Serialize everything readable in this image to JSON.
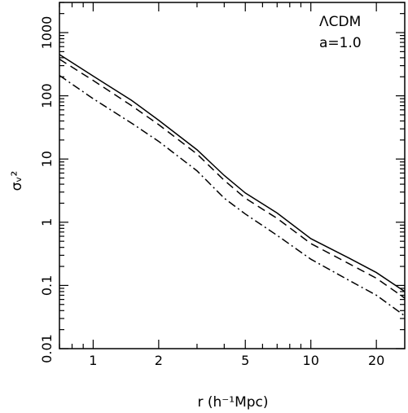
{
  "chart_data": {
    "type": "line",
    "xlabel": "r (h⁻¹Mpc)",
    "ylabel": "σᵥ²",
    "xscale": "log",
    "yscale": "log",
    "xlim": [
      0.7,
      27
    ],
    "ylim": [
      0.01,
      3000
    ],
    "x_ticks": [
      1,
      2,
      5,
      10,
      20
    ],
    "x_tick_labels": [
      "1",
      "2",
      "5",
      "10",
      "20"
    ],
    "y_ticks": [
      0.01,
      0.1,
      1,
      10,
      100,
      1000
    ],
    "y_tick_labels": [
      "0.01",
      "0.1",
      "1",
      "10",
      "100",
      "1000"
    ],
    "grid": false,
    "annotations": [
      "ΛCDM",
      "a=1.0"
    ],
    "series": [
      {
        "style": "solid",
        "x": [
          0.7,
          1.0,
          1.5,
          2.0,
          3.0,
          4.0,
          5.0,
          7.0,
          10.0,
          15.0,
          20.0,
          27.0
        ],
        "y": [
          450,
          205,
          85,
          41,
          14,
          5.5,
          2.9,
          1.4,
          0.55,
          0.27,
          0.16,
          0.08
        ]
      },
      {
        "style": "dashed",
        "x": [
          0.7,
          1.0,
          1.5,
          2.0,
          3.0,
          4.0,
          5.0,
          7.0,
          10.0,
          15.0,
          20.0,
          27.0
        ],
        "y": [
          380,
          175,
          70,
          35,
          12,
          4.6,
          2.4,
          1.15,
          0.46,
          0.22,
          0.13,
          0.063
        ]
      },
      {
        "style": "dash-dot",
        "x": [
          0.7,
          1.0,
          1.5,
          2.0,
          3.0,
          4.0,
          5.0,
          7.0,
          10.0,
          15.0,
          20.0,
          27.0
        ],
        "y": [
          210,
          90,
          37,
          19,
          6.5,
          2.4,
          1.35,
          0.62,
          0.26,
          0.12,
          0.07,
          0.033
        ]
      }
    ]
  }
}
